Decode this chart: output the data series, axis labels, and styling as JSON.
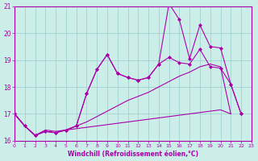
{
  "xlabel": "Windchill (Refroidissement éolien,°C)",
  "bg_color": "#cceee8",
  "line_color": "#aa00aa",
  "grid_color": "#99cccc",
  "xmin": 0,
  "xmax": 23,
  "ymin": 16,
  "ymax": 21,
  "yticks": [
    16,
    17,
    18,
    19,
    20,
    21
  ],
  "series": [
    {
      "x": [
        0,
        1,
        2,
        3,
        4,
        5,
        6,
        7,
        8,
        9,
        10,
        11,
        12,
        13,
        14,
        15,
        16,
        17,
        18,
        19,
        20,
        21,
        22,
        23
      ],
      "y": [
        17.0,
        16.55,
        16.2,
        16.4,
        16.35,
        16.4,
        16.45,
        16.5,
        16.55,
        16.6,
        16.65,
        16.7,
        16.75,
        16.8,
        16.85,
        16.9,
        16.95,
        17.0,
        17.05,
        17.1,
        17.15,
        17.0,
        null,
        null
      ],
      "marker": false
    },
    {
      "x": [
        0,
        1,
        2,
        3,
        4,
        5,
        6,
        7,
        8,
        9,
        10,
        11,
        12,
        13,
        14,
        15,
        16,
        17,
        18,
        19,
        20,
        21,
        22,
        23
      ],
      "y": [
        17.0,
        16.55,
        16.2,
        16.35,
        16.3,
        16.4,
        16.55,
        16.7,
        16.9,
        17.1,
        17.3,
        17.5,
        17.65,
        17.8,
        18.0,
        18.2,
        18.4,
        18.55,
        18.75,
        18.85,
        18.75,
        17.0,
        null,
        null
      ],
      "marker": false
    },
    {
      "x": [
        0,
        1,
        2,
        3,
        4,
        5,
        6,
        7,
        8,
        9,
        10,
        11,
        12,
        13,
        14,
        15,
        16,
        17,
        18,
        19,
        20,
        21,
        22
      ],
      "y": [
        17.0,
        16.55,
        16.2,
        16.35,
        16.3,
        16.4,
        16.55,
        17.75,
        18.65,
        19.2,
        18.5,
        18.35,
        18.25,
        18.35,
        18.85,
        19.1,
        18.9,
        18.85,
        19.4,
        18.75,
        18.7,
        18.1,
        17.0
      ],
      "marker": true
    },
    {
      "x": [
        0,
        1,
        2,
        3,
        4,
        5,
        6,
        7,
        8,
        9,
        10,
        11,
        12,
        13,
        14,
        15,
        16,
        17,
        18,
        19,
        20,
        21,
        22
      ],
      "y": [
        17.0,
        16.55,
        16.2,
        16.35,
        16.3,
        16.4,
        16.55,
        17.75,
        18.65,
        19.2,
        18.5,
        18.35,
        18.25,
        18.35,
        18.85,
        21.1,
        20.5,
        19.05,
        20.3,
        19.5,
        19.45,
        18.1,
        17.0
      ],
      "marker": true
    }
  ]
}
